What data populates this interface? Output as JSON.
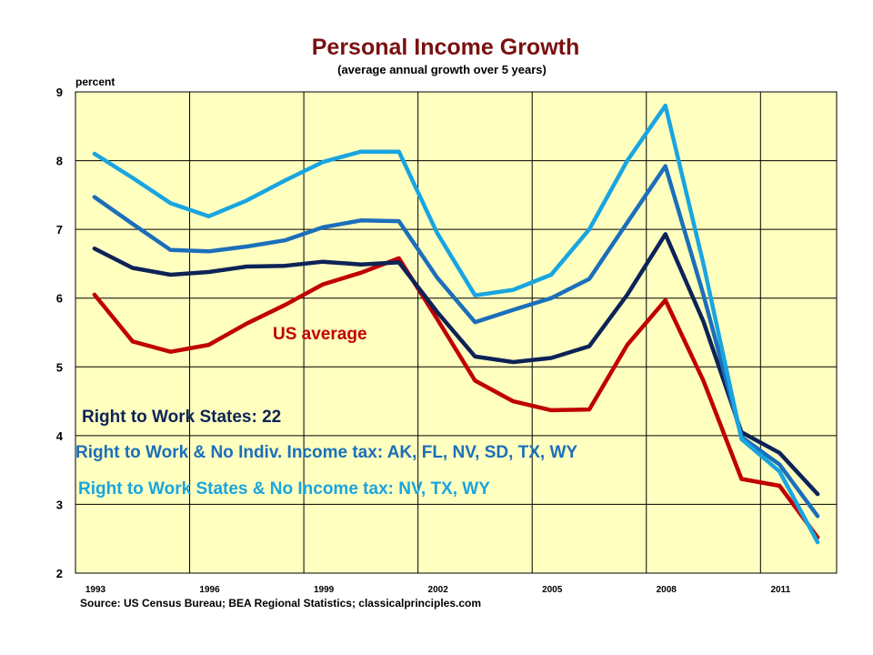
{
  "chart_data": {
    "type": "line",
    "title": "Personal Income Growth",
    "subtitle": "(average annual growth over 5 years)",
    "ylabel": "percent",
    "xlabel": "",
    "source": "Source:  US Census Bureau;  BEA Regional  Statistics;  classicalprinciples.com",
    "x": [
      1993,
      1994,
      1995,
      1996,
      1997,
      1998,
      1999,
      2000,
      2001,
      2002,
      2003,
      2004,
      2005,
      2006,
      2007,
      2008,
      2009,
      2010,
      2011,
      2012
    ],
    "xticks": [
      1993,
      1996,
      1999,
      2002,
      2005,
      2008,
      2011
    ],
    "xlim": [
      1993,
      2013
    ],
    "ylim": [
      2,
      9
    ],
    "yticks": [
      2,
      3,
      4,
      5,
      6,
      7,
      8,
      9
    ],
    "grid": true,
    "background": "#ffffc0",
    "series": [
      {
        "color": "#c00000",
        "values": [
          6.05,
          5.37,
          5.22,
          5.32,
          5.63,
          5.9,
          6.2,
          6.37,
          6.58,
          5.7,
          4.8,
          4.5,
          4.37,
          4.38,
          5.32,
          5.97,
          4.8,
          3.37,
          3.27,
          2.52
        ]
      },
      {
        "color": "#0d2357",
        "values": [
          6.72,
          6.44,
          6.34,
          6.38,
          6.46,
          6.47,
          6.53,
          6.49,
          6.52,
          5.8,
          5.15,
          5.07,
          5.13,
          5.3,
          6.05,
          6.93,
          5.66,
          4.05,
          3.75,
          3.15
        ]
      },
      {
        "color": "#1b6fba",
        "values": [
          7.47,
          7.08,
          6.7,
          6.68,
          6.75,
          6.84,
          7.03,
          7.13,
          7.12,
          6.3,
          5.65,
          5.83,
          6.0,
          6.28,
          7.1,
          7.92,
          6.05,
          3.98,
          3.58,
          2.83
        ]
      },
      {
        "color": "#19a5e0",
        "values": [
          8.1,
          7.75,
          7.38,
          7.19,
          7.42,
          7.71,
          7.98,
          8.13,
          8.13,
          6.95,
          6.04,
          6.12,
          6.34,
          7.0,
          8.0,
          8.8,
          6.5,
          3.95,
          3.48,
          2.45
        ]
      }
    ],
    "annotations": [
      {
        "text": "US average",
        "color": "#c00000"
      },
      {
        "text": "Right to Work States: 22",
        "color": "#0d2357"
      },
      {
        "text": "Right to Work & No Indiv. Income tax: AK, FL, NV, SD, TX, WY",
        "color": "#1b6fba"
      },
      {
        "text": "Right to Work States & No Income tax:  NV, TX, WY",
        "color": "#19a5e0"
      }
    ]
  }
}
